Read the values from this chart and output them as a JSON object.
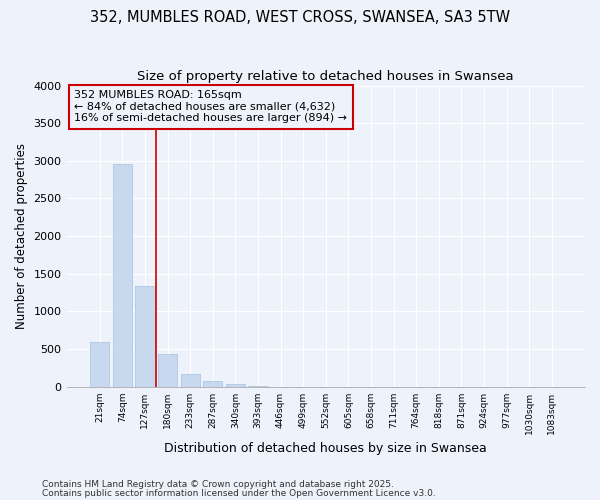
{
  "title": "352, MUMBLES ROAD, WEST CROSS, SWANSEA, SA3 5TW",
  "subtitle": "Size of property relative to detached houses in Swansea",
  "xlabel": "Distribution of detached houses by size in Swansea",
  "ylabel": "Number of detached properties",
  "categories": [
    "21sqm",
    "74sqm",
    "127sqm",
    "180sqm",
    "233sqm",
    "287sqm",
    "340sqm",
    "393sqm",
    "446sqm",
    "499sqm",
    "552sqm",
    "605sqm",
    "658sqm",
    "711sqm",
    "764sqm",
    "818sqm",
    "871sqm",
    "924sqm",
    "977sqm",
    "1030sqm",
    "1083sqm"
  ],
  "values": [
    590,
    2960,
    1340,
    430,
    170,
    80,
    40,
    5,
    0,
    0,
    0,
    0,
    0,
    0,
    0,
    0,
    0,
    0,
    0,
    0,
    0
  ],
  "bar_color": "#c8d8ee",
  "bar_edge_color": "#b0c8e4",
  "vline_x_idx": 3,
  "vline_color": "#cc0000",
  "annotation_box_title": "352 MUMBLES ROAD: 165sqm",
  "annotation_line1": "← 84% of detached houses are smaller (4,632)",
  "annotation_line2": "16% of semi-detached houses are larger (894) →",
  "ylim": [
    0,
    4000
  ],
  "yticks": [
    0,
    500,
    1000,
    1500,
    2000,
    2500,
    3000,
    3500,
    4000
  ],
  "bg_color": "#eef2fb",
  "plot_bg_color": "#eef2fb",
  "grid_color": "#ffffff",
  "footnote1": "Contains HM Land Registry data © Crown copyright and database right 2025.",
  "footnote2": "Contains public sector information licensed under the Open Government Licence v3.0.",
  "title_fontsize": 10.5,
  "subtitle_fontsize": 9.5,
  "annot_fontsize": 8.0
}
